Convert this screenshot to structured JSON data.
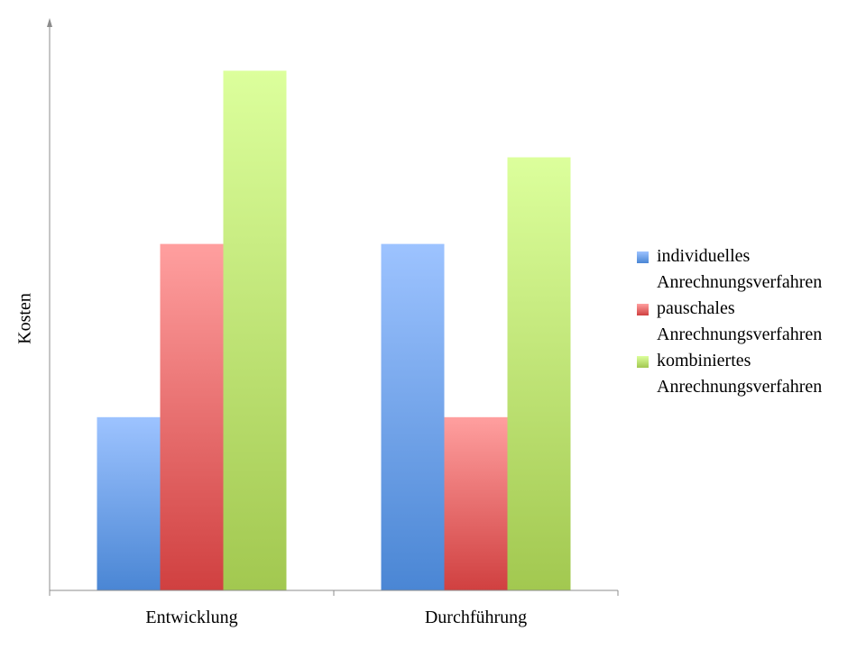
{
  "chart_data": {
    "type": "bar",
    "title": "",
    "xlabel": "",
    "ylabel": "Kosten",
    "categories": [
      "Entwicklung",
      "Durchführung"
    ],
    "series": [
      {
        "name": "individuelles\nAnrechnungsverfahren",
        "values": [
          1,
          2
        ],
        "color": "#4a86d4",
        "color_light": "#9dc3ff"
      },
      {
        "name": "pauschales\nAnrechnungsverfahren",
        "values": [
          2,
          1
        ],
        "color": "#d04040",
        "color_light": "#ff9f9f"
      },
      {
        "name": "kombiniertes\nAnrechnungsverfahren",
        "values": [
          3,
          2.5
        ],
        "color": "#a2c850",
        "color_light": "#dcff9c"
      }
    ],
    "ylim": [
      0,
      3.2
    ],
    "grid": false,
    "legend_position": "right"
  }
}
